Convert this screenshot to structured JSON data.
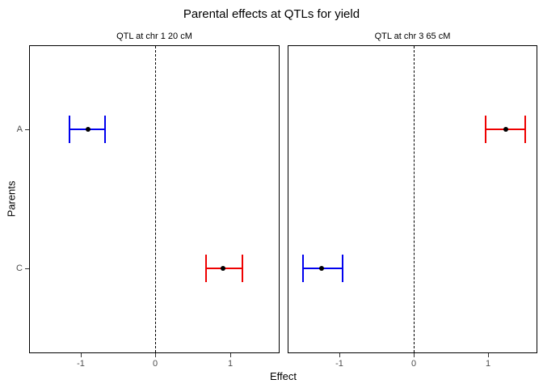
{
  "chart_data": {
    "type": "scatter",
    "title": "Parental effects at QTLs for yield",
    "xlabel": "Effect",
    "ylabel": "Parents",
    "categories": [
      "A",
      "C"
    ],
    "xlim": [
      -1.68,
      1.64
    ],
    "xticks": [
      -1,
      0,
      1
    ],
    "xtick_labels": [
      "-1",
      "0",
      "1"
    ],
    "reference_line_x": 0,
    "grid": false,
    "legend_position": "none",
    "row_fracs": [
      0.272,
      0.727
    ],
    "colors": {
      "negative_effect": "#0000ee",
      "positive_effect": "#ee0000",
      "point": "#000000"
    },
    "panels": [
      {
        "label": "QTL at chr 1 20 cM",
        "points": [
          {
            "parent": "A",
            "estimate": -0.9,
            "ci_low": -1.15,
            "ci_high": -0.67,
            "color": "#0000ee"
          },
          {
            "parent": "C",
            "estimate": 0.91,
            "ci_low": 0.68,
            "ci_high": 1.16,
            "color": "#ee0000"
          }
        ]
      },
      {
        "label": "QTL at chr 3 65 cM",
        "points": [
          {
            "parent": "A",
            "estimate": 1.24,
            "ci_low": 0.97,
            "ci_high": 1.5,
            "color": "#ee0000"
          },
          {
            "parent": "C",
            "estimate": -1.23,
            "ci_low": -1.49,
            "ci_high": -0.95,
            "color": "#0000ee"
          }
        ]
      }
    ]
  }
}
